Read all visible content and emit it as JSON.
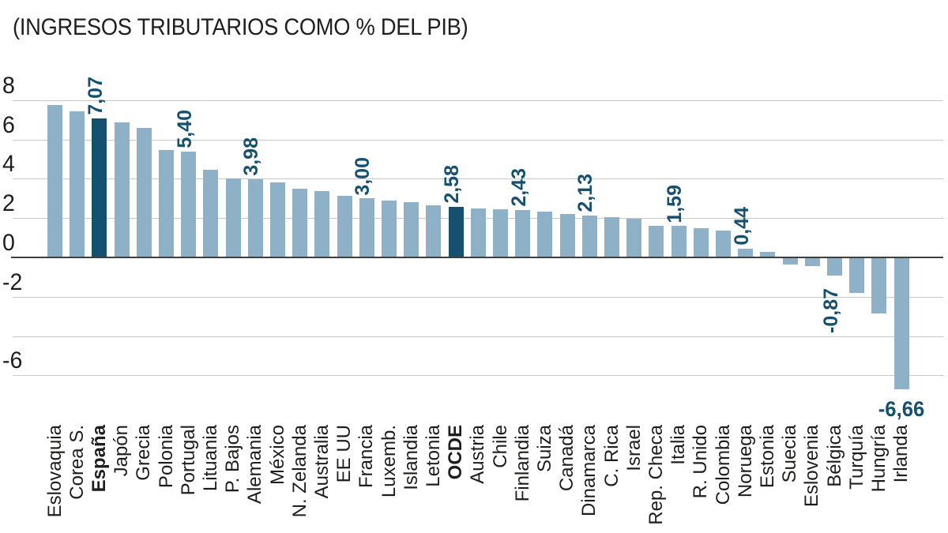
{
  "title": "(INGRESOS TRIBUTARIOS COMO % DEL PIB)",
  "colors": {
    "bar": "#8FB1C7",
    "bar_highlight": "#15506F",
    "value_label": "#15506F",
    "gridline": "#C8C8C8",
    "zero_axis": "#3F3F3E",
    "text": "#1D1D1B",
    "background": "#FFFFFF"
  },
  "chart_data": {
    "type": "bar",
    "title": "(INGRESOS TRIBUTARIOS COMO % DEL PIB)",
    "xlabel": "",
    "ylabel": "",
    "ylim": [
      -7.5,
      8
    ],
    "grid": true,
    "legend": "none",
    "y_ticks": [
      {
        "value": 8,
        "label": "8"
      },
      {
        "value": 6,
        "label": "6"
      },
      {
        "value": 4,
        "label": "4"
      },
      {
        "value": 2,
        "label": "2"
      },
      {
        "value": 0,
        "label": "0"
      },
      {
        "value": -2,
        "label": "-2"
      },
      {
        "value": -4,
        "label": ""
      },
      {
        "value": -6,
        "label": "-6"
      }
    ],
    "categories": [
      "Eslovaquia",
      "Corea S.",
      "España",
      "Japón",
      "Grecia",
      "Polonia",
      "Portugal",
      "Lituania",
      "P. Bajos",
      "Alemania",
      "México",
      "N. Zelanda",
      "Australia",
      "EE UU",
      "Francia",
      "Luxemb.",
      "Islandia",
      "Letonia",
      "OCDE",
      "Austria",
      "Chile",
      "Finlandia",
      "Suiza",
      "Canadá",
      "Dinamarca",
      "C. Rica",
      "Israel",
      "Rep. Checa",
      "Italia",
      "R. Unido",
      "Colombia",
      "Noruega",
      "Estonia",
      "Suecia",
      "Eslovenia",
      "Bélgica",
      "Turquía",
      "Hungría",
      "Irlanda"
    ],
    "values": [
      7.75,
      7.45,
      7.07,
      6.85,
      6.6,
      5.45,
      5.4,
      4.45,
      4.02,
      3.98,
      3.8,
      3.48,
      3.38,
      3.15,
      3.0,
      2.9,
      2.8,
      2.65,
      2.58,
      2.5,
      2.46,
      2.43,
      2.32,
      2.2,
      2.13,
      2.05,
      1.95,
      1.62,
      1.59,
      1.48,
      1.35,
      0.44,
      0.28,
      -0.3,
      -0.4,
      -0.87,
      -1.77,
      -2.8,
      -6.66
    ],
    "bar_labels": [
      "",
      "",
      "7,07",
      "",
      "",
      "",
      "5,40",
      "",
      "",
      "3,98",
      "",
      "",
      "",
      "",
      "3,00",
      "",
      "",
      "",
      "2,58",
      "",
      "",
      "2,43",
      "",
      "",
      "2,13",
      "",
      "",
      "",
      "1,59",
      "",
      "",
      "0,44",
      "",
      "",
      "",
      "-0,87",
      "",
      "",
      "-6,66"
    ],
    "highlight_indices": [
      2,
      18
    ],
    "horizontal_label_indices": [
      38
    ]
  }
}
